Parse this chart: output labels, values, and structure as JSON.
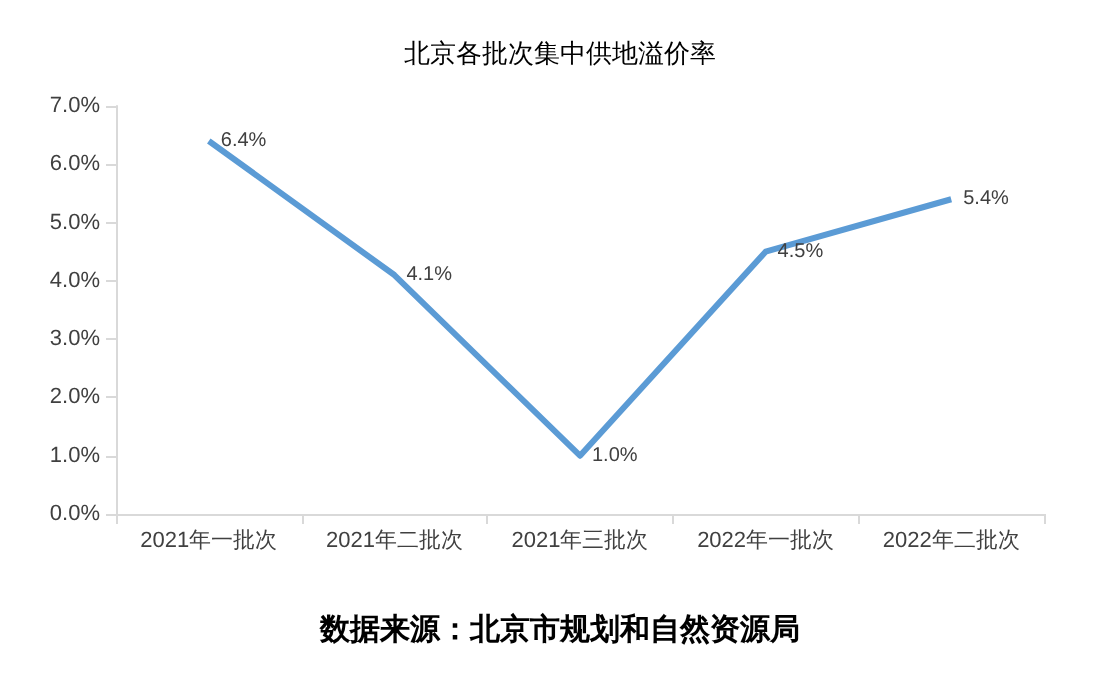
{
  "chart_data": {
    "type": "line",
    "title": "北京各批次集中供地溢价率",
    "categories": [
      "2021年一批次",
      "2021年二批次",
      "2021年三批次",
      "2022年一批次",
      "2022年二批次"
    ],
    "values": [
      6.4,
      4.1,
      1.0,
      4.5,
      5.4
    ],
    "value_labels": [
      "6.4%",
      "4.1%",
      "1.0%",
      "4.5%",
      "5.4%"
    ],
    "color": "#5b9bd5",
    "marker": "none",
    "grid": false,
    "ylim": [
      0,
      7
    ],
    "yticks": [
      {
        "value": 0,
        "label": "0.0%"
      },
      {
        "value": 1,
        "label": "1.0%"
      },
      {
        "value": 2,
        "label": "2.0%"
      },
      {
        "value": 3,
        "label": "3.0%"
      },
      {
        "value": 4,
        "label": "4.0%"
      },
      {
        "value": 5,
        "label": "5.0%"
      },
      {
        "value": 6,
        "label": "6.0%"
      },
      {
        "value": 7,
        "label": "7.0%"
      }
    ],
    "annotations": [
      "数据来源：北京市规划和自然资源局"
    ]
  }
}
